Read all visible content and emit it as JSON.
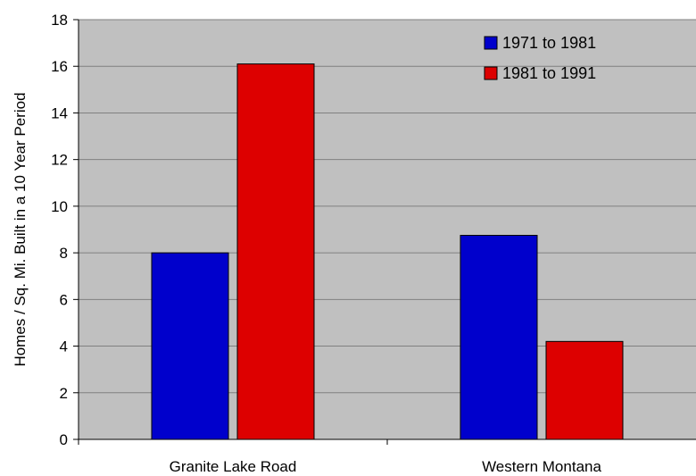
{
  "chart_data": {
    "type": "bar",
    "categories": [
      "Granite Lake Road",
      "Western Montana"
    ],
    "series": [
      {
        "name": "1971 to 1981",
        "values": [
          8.0,
          8.75
        ],
        "color": "#0000CC"
      },
      {
        "name": "1981 to 1991",
        "values": [
          16.1,
          4.2
        ],
        "color": "#DD0000"
      }
    ],
    "title": "",
    "xlabel": "",
    "ylabel": "Homes / Sq. Mi. Built in a 10 Year Period",
    "ylim": [
      0,
      18
    ],
    "yticks": [
      "0",
      "2",
      "4",
      "6",
      "8",
      "10",
      "12",
      "14",
      "16",
      "18"
    ],
    "grid": true,
    "legend_position": "top-right",
    "plot_background": "#C0C0C0",
    "gridline_color": "#808080"
  }
}
